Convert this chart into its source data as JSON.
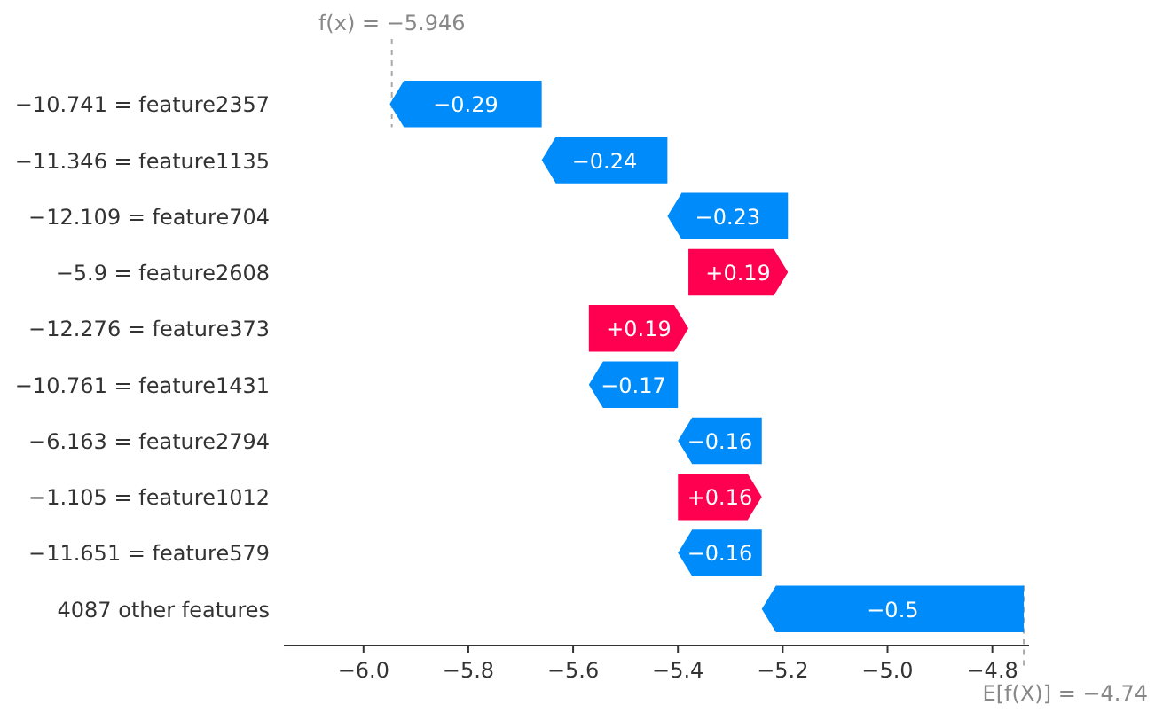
{
  "chart_data": {
    "type": "bar",
    "orientation": "horizontal",
    "categories": [
      "−10.741 = feature2357",
      "−11.346 = feature1135",
      "−12.109 = feature704",
      "−5.9 = feature2608",
      "−12.276 = feature373",
      "−10.761 = feature1431",
      "−6.163 = feature2794",
      "−1.105 = feature1012",
      "−11.651 = feature579",
      "4087 other features"
    ],
    "base": [
      -5.66,
      -5.42,
      -5.19,
      -5.38,
      -5.57,
      -5.4,
      -5.24,
      -5.4,
      -5.24,
      -4.74
    ],
    "values": [
      -0.29,
      -0.24,
      -0.23,
      0.19,
      0.19,
      -0.17,
      -0.16,
      0.16,
      -0.16,
      -0.5
    ],
    "value_labels": [
      "−0.29",
      "−0.24",
      "−0.23",
      "+0.19",
      "+0.19",
      "−0.17",
      "−0.16",
      "+0.16",
      "−0.16",
      "−0.5"
    ],
    "colors": [
      "#008bfb",
      "#008bfb",
      "#008bfb",
      "#ff0051",
      "#ff0051",
      "#008bfb",
      "#008bfb",
      "#ff0051",
      "#008bfb",
      "#008bfb"
    ],
    "xlim": [
      -6.152,
      -4.73
    ],
    "xticks": [
      {
        "value": -6,
        "label": "−6.0"
      },
      {
        "value": -5.8,
        "label": "−5.8"
      },
      {
        "value": -5.6,
        "label": "−5.6"
      },
      {
        "value": -5.4,
        "label": "−5.4"
      },
      {
        "value": -5.2,
        "label": "−5.2"
      },
      {
        "value": -5,
        "label": "−5.0"
      },
      {
        "value": -4.8,
        "label": "−4.8"
      }
    ],
    "annotations": [
      {
        "text": "f(x) = −5.946",
        "x": -5.946
      },
      {
        "text": "E[f(X)] = −4.74",
        "x": -4.74,
        "y": "4087 other features"
      }
    ]
  }
}
